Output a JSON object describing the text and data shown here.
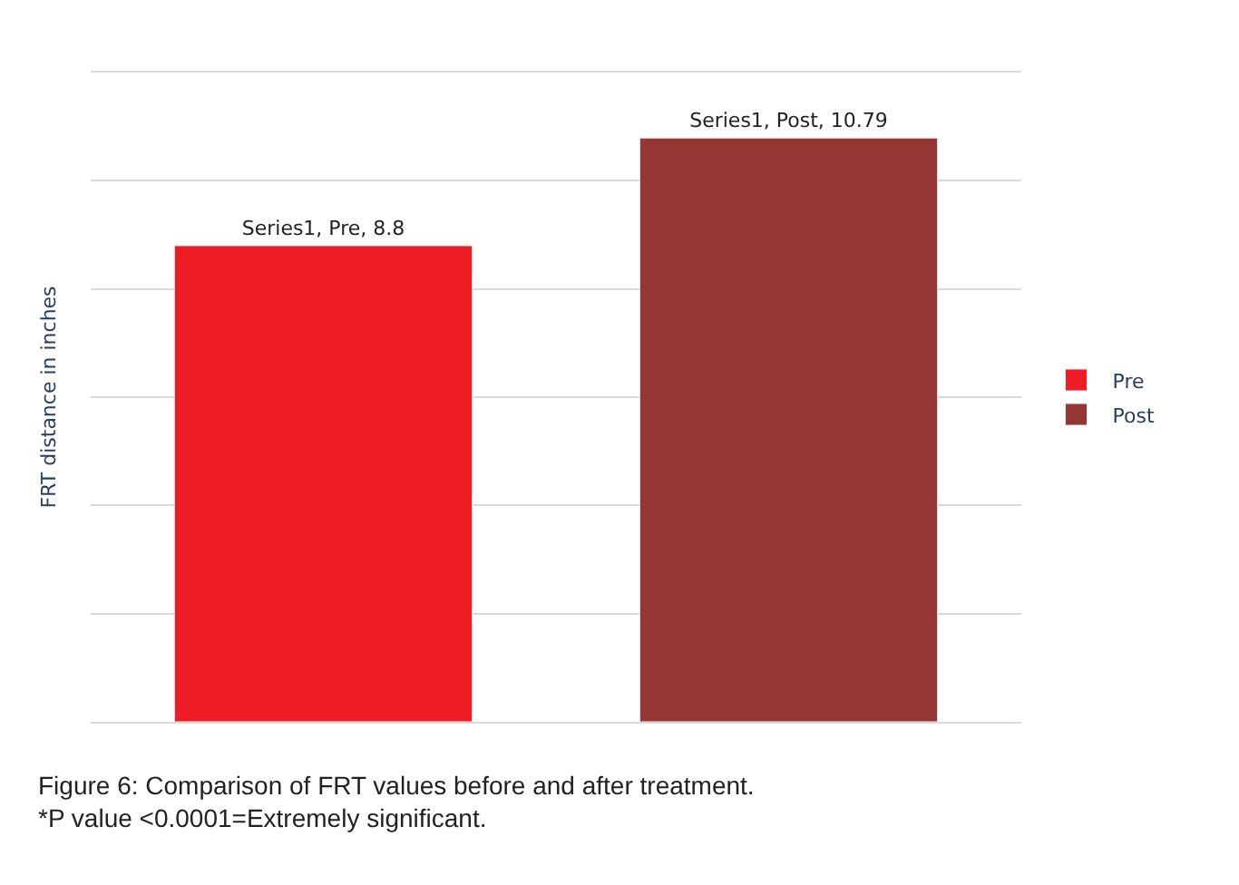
{
  "chart_data": {
    "type": "bar",
    "ylabel": "FRT distance in inches",
    "categories": [
      null
    ],
    "series": [
      {
        "name": "Pre",
        "color": "#ee1c25",
        "values": [
          8.8
        ],
        "value_labels": [
          "Series1, Pre, 8.8"
        ]
      },
      {
        "name": "Post",
        "color": "#943634",
        "values": [
          10.79
        ],
        "value_labels": [
          "Series1, Post, 10.79"
        ]
      }
    ],
    "ylim": [
      0,
      12
    ],
    "yticks": [
      {
        "value": 0,
        "label": null
      },
      {
        "value": 2,
        "label": null
      },
      {
        "value": 4,
        "label": null
      },
      {
        "value": 6,
        "label": null
      },
      {
        "value": 8,
        "label": null
      },
      {
        "value": 10,
        "label": null
      },
      {
        "value": 12,
        "label": null
      }
    ],
    "grid": "y",
    "legend": "right",
    "tick_labels": false,
    "annotations": [
      "Figure 6: Comparison of FRT values before and after treatment.\n*P value <0.0001=Extremely significant."
    ]
  }
}
